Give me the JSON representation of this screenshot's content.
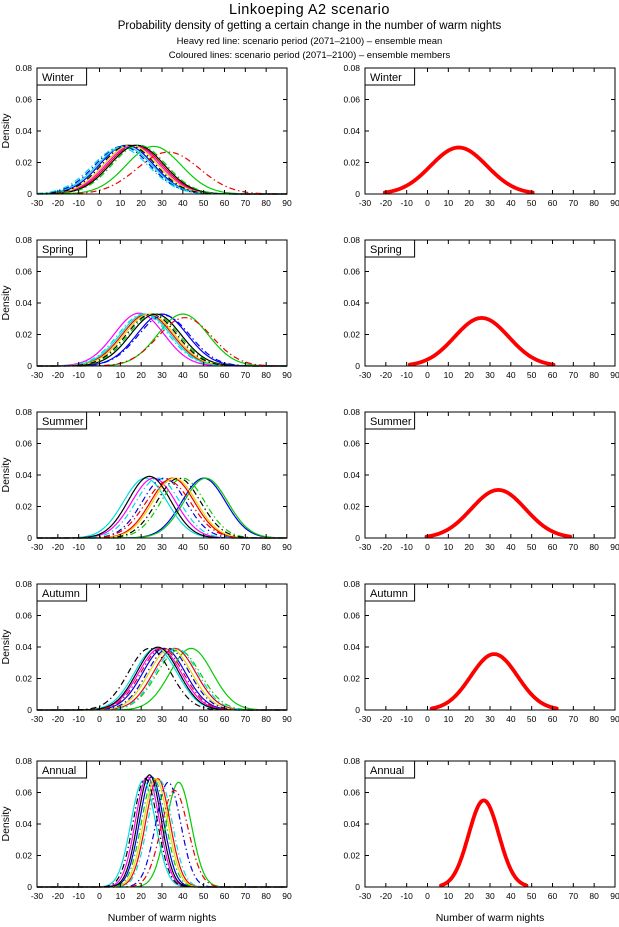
{
  "header": {
    "title": "Linkoeping A2 scenario",
    "subtitle": "Probability density of getting a certain change in the number of warm nights",
    "legend_red": "Heavy red line: scenario period (2071–2100) – ensemble mean",
    "legend_coloured": "Coloured lines: scenario period (2071–2100) – ensemble members"
  },
  "chart_data": {
    "type": "line",
    "figure_title": "Linkoeping A2 scenario",
    "xlabel": "Number of warm nights",
    "ylabel": "Density",
    "xlim": [
      -30,
      90
    ],
    "ylim": [
      0,
      0.08
    ],
    "xticks": [
      -30,
      -20,
      -10,
      0,
      10,
      20,
      30,
      40,
      50,
      60,
      70,
      80,
      90
    ],
    "yticks": [
      0,
      0.02,
      0.04,
      0.06,
      0.08
    ],
    "grid": false,
    "ensemble_mean_color": "#ff0000",
    "columns": [
      {
        "role": "ensemble-members",
        "description": "Coloured lines: scenario period (2071–2100) – ensemble members"
      },
      {
        "role": "ensemble-mean",
        "description": "Heavy red line: scenario period (2071–2100) – ensemble mean"
      }
    ],
    "rows": [
      {
        "season": "Winter",
        "members": [
          {
            "color": "#0000ee",
            "style": "solid",
            "mean": 13,
            "sd": 12.9
          },
          {
            "color": "#00cc00",
            "style": "solid",
            "mean": 26,
            "sd": 13.2
          },
          {
            "color": "#ee0000",
            "style": "solid",
            "mean": 17,
            "sd": 12.9
          },
          {
            "color": "#00dddd",
            "style": "solid",
            "mean": 12,
            "sd": 13.2
          },
          {
            "color": "#ff00ff",
            "style": "solid",
            "mean": 16,
            "sd": 12.9
          },
          {
            "color": "#eed500",
            "style": "solid",
            "mean": 15,
            "sd": 12.9
          },
          {
            "color": "#000000",
            "style": "solid",
            "mean": 18,
            "sd": 12.9
          },
          {
            "color": "#0000ee",
            "style": "dashdot",
            "mean": 11,
            "sd": 13.2
          },
          {
            "color": "#00cc00",
            "style": "dashdot",
            "mean": 19,
            "sd": 12.9
          },
          {
            "color": "#ee0000",
            "style": "dashdot",
            "mean": 33,
            "sd": 15.0
          },
          {
            "color": "#00dddd",
            "style": "dashdot",
            "mean": 10,
            "sd": 13.5
          },
          {
            "color": "#000000",
            "style": "dashdot",
            "mean": 14,
            "sd": 12.9
          }
        ],
        "ensemble_mean": {
          "color": "#ff0000",
          "style": "solid",
          "mean": 15,
          "sd": 13.5,
          "peak_density": 0.0295
        }
      },
      {
        "season": "Spring",
        "members": [
          {
            "color": "#0000ee",
            "style": "solid",
            "mean": 30,
            "sd": 12.1
          },
          {
            "color": "#00cc00",
            "style": "solid",
            "mean": 40,
            "sd": 12.1
          },
          {
            "color": "#ee0000",
            "style": "solid",
            "mean": 23,
            "sd": 12.1
          },
          {
            "color": "#00dddd",
            "style": "solid",
            "mean": 22,
            "sd": 12.1
          },
          {
            "color": "#ff00ff",
            "style": "solid",
            "mean": 19,
            "sd": 11.9
          },
          {
            "color": "#eed500",
            "style": "solid",
            "mean": 24,
            "sd": 12.1
          },
          {
            "color": "#000000",
            "style": "solid",
            "mean": 27,
            "sd": 12.1
          },
          {
            "color": "#0000ee",
            "style": "dashdot",
            "mean": 31,
            "sd": 12.4
          },
          {
            "color": "#00cc00",
            "style": "dashdot",
            "mean": 26,
            "sd": 12.1
          },
          {
            "color": "#ee0000",
            "style": "dashdot",
            "mean": 41,
            "sd": 13.0
          },
          {
            "color": "#00dddd",
            "style": "dashdot",
            "mean": 21,
            "sd": 12.1
          },
          {
            "color": "#000000",
            "style": "dashdot",
            "mean": 25,
            "sd": 12.1
          }
        ],
        "ensemble_mean": {
          "color": "#ff0000",
          "style": "solid",
          "mean": 26,
          "sd": 13.0,
          "peak_density": 0.0305
        }
      },
      {
        "season": "Summer",
        "members": [
          {
            "color": "#0000ee",
            "style": "solid",
            "mean": 50,
            "sd": 10.5
          },
          {
            "color": "#00cc00",
            "style": "solid",
            "mean": 51,
            "sd": 10.5
          },
          {
            "color": "#ee0000",
            "style": "solid",
            "mean": 35,
            "sd": 10.5
          },
          {
            "color": "#00dddd",
            "style": "solid",
            "mean": 22,
            "sd": 10.5
          },
          {
            "color": "#ff00ff",
            "style": "solid",
            "mean": 26,
            "sd": 10.5
          },
          {
            "color": "#eed500",
            "style": "solid",
            "mean": 36,
            "sd": 10.5
          },
          {
            "color": "#000000",
            "style": "solid",
            "mean": 24,
            "sd": 10.2
          },
          {
            "color": "#0000ee",
            "style": "dashdot",
            "mean": 31,
            "sd": 10.5
          },
          {
            "color": "#00cc00",
            "style": "dashdot",
            "mean": 40,
            "sd": 10.5
          },
          {
            "color": "#ee0000",
            "style": "dashdot",
            "mean": 33,
            "sd": 11.0
          },
          {
            "color": "#00dddd",
            "style": "dashdot",
            "mean": 28,
            "sd": 10.5
          },
          {
            "color": "#000000",
            "style": "dashdot",
            "mean": 38,
            "sd": 10.5
          }
        ],
        "ensemble_mean": {
          "color": "#ff0000",
          "style": "solid",
          "mean": 34,
          "sd": 13.0,
          "peak_density": 0.0305
        }
      },
      {
        "season": "Autumn",
        "members": [
          {
            "color": "#0000ee",
            "style": "solid",
            "mean": 31,
            "sd": 10.2
          },
          {
            "color": "#00cc00",
            "style": "solid",
            "mean": 44,
            "sd": 10.2
          },
          {
            "color": "#ee0000",
            "style": "solid",
            "mean": 36,
            "sd": 10.2
          },
          {
            "color": "#00dddd",
            "style": "solid",
            "mean": 27,
            "sd": 10.2
          },
          {
            "color": "#ff00ff",
            "style": "solid",
            "mean": 29,
            "sd": 10.2
          },
          {
            "color": "#eed500",
            "style": "solid",
            "mean": 34,
            "sd": 10.2
          },
          {
            "color": "#000000",
            "style": "solid",
            "mean": 28,
            "sd": 10.0
          },
          {
            "color": "#0000ee",
            "style": "dashdot",
            "mean": 33,
            "sd": 10.2
          },
          {
            "color": "#00cc00",
            "style": "dashdot",
            "mean": 38,
            "sd": 10.5
          },
          {
            "color": "#ee0000",
            "style": "dashdot",
            "mean": 30,
            "sd": 10.2
          },
          {
            "color": "#00dddd",
            "style": "dashdot",
            "mean": 37,
            "sd": 10.2
          },
          {
            "color": "#000000",
            "style": "dashdot",
            "mean": 24,
            "sd": 10.2
          }
        ],
        "ensemble_mean": {
          "color": "#ff0000",
          "style": "solid",
          "mean": 32,
          "sd": 11.2,
          "peak_density": 0.0355
        }
      },
      {
        "season": "Annual",
        "members": [
          {
            "color": "#0000ee",
            "style": "solid",
            "mean": 25,
            "sd": 5.7
          },
          {
            "color": "#00cc00",
            "style": "solid",
            "mean": 38,
            "sd": 6.0
          },
          {
            "color": "#ee0000",
            "style": "solid",
            "mean": 28,
            "sd": 5.8
          },
          {
            "color": "#00dddd",
            "style": "solid",
            "mean": 21,
            "sd": 5.9
          },
          {
            "color": "#ff00ff",
            "style": "solid",
            "mean": 23,
            "sd": 5.7
          },
          {
            "color": "#eed500",
            "style": "solid",
            "mean": 27,
            "sd": 5.8
          },
          {
            "color": "#000000",
            "style": "solid",
            "mean": 24,
            "sd": 5.6
          },
          {
            "color": "#0000ee",
            "style": "dashdot",
            "mean": 33,
            "sd": 6.0
          },
          {
            "color": "#00cc00",
            "style": "dashdot",
            "mean": 26,
            "sd": 5.8
          },
          {
            "color": "#ee0000",
            "style": "dashdot",
            "mean": 36,
            "sd": 6.5
          },
          {
            "color": "#00dddd",
            "style": "dashdot",
            "mean": 29,
            "sd": 5.9
          },
          {
            "color": "#000000",
            "style": "dashdot",
            "mean": 22,
            "sd": 5.8
          }
        ],
        "ensemble_mean": {
          "color": "#ff0000",
          "style": "solid",
          "mean": 27,
          "sd": 7.25,
          "peak_density": 0.055
        }
      }
    ]
  }
}
